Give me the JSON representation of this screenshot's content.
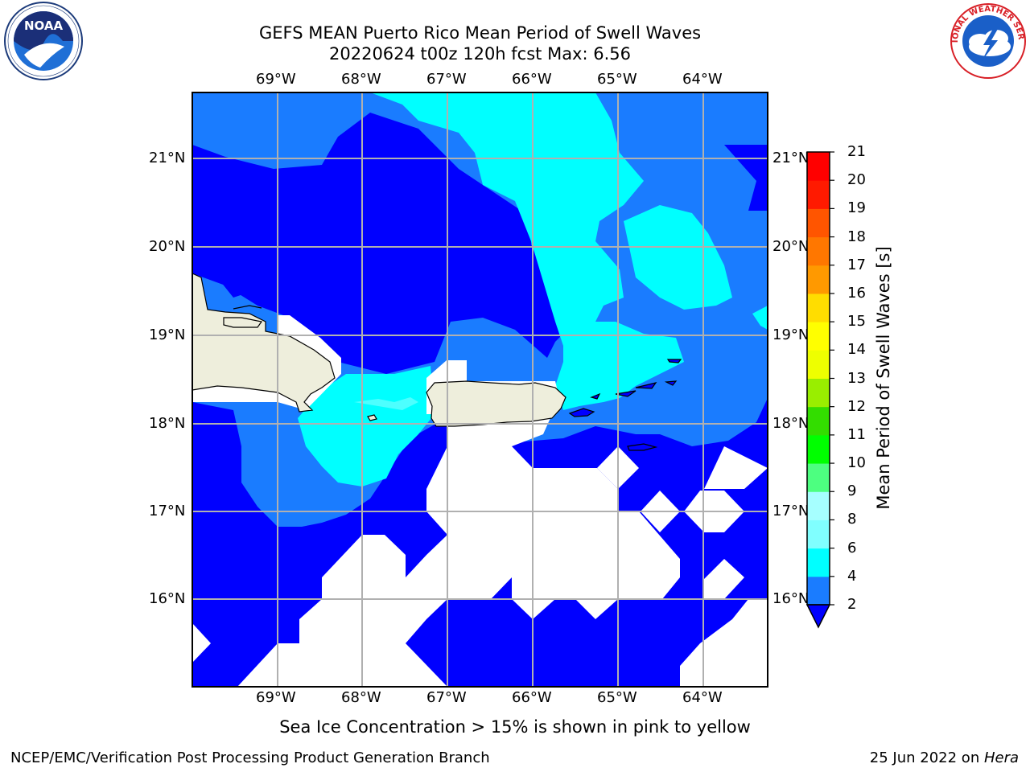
{
  "header": {
    "title_line1": "GEFS MEAN Puerto Rico Mean Period of Swell Waves",
    "title_line2": "20220624 t00z 120h fcst   Max: 6.56"
  },
  "logos": {
    "left": {
      "name": "NOAA",
      "ring_text": "NATIONAL OCEANIC AND ATMOSPHERIC ADMINISTRATION · U.S. DEPARTMENT OF COMMERCE"
    },
    "right": {
      "name": "NATIONAL WEATHER SERVICE"
    }
  },
  "map": {
    "lon_labels": [
      "69°W",
      "68°W",
      "67°W",
      "66°W",
      "65°W",
      "64°W"
    ],
    "lat_labels": [
      "21°N",
      "20°N",
      "19°N",
      "18°N",
      "17°N",
      "16°N"
    ],
    "fill_colors": {
      "deep_blue": "#0000ff",
      "blue": "#1a7cff",
      "cyan": "#00ffff",
      "light_cyan": "#4dffff",
      "land": "#eeeedc",
      "no_data": "#ffffff"
    }
  },
  "colorbar": {
    "label": "Mean Period of Swell Waves [s]",
    "ticks": [
      "2",
      "4",
      "6",
      "8",
      "9",
      "10",
      "11",
      "12",
      "13",
      "14",
      "15",
      "16",
      "17",
      "18",
      "19",
      "20",
      "21"
    ],
    "colors": [
      "#1a7cff",
      "#00ffff",
      "#4dffff",
      "#80ffff",
      "#a6ffff",
      "#4dff80",
      "#00ff4d",
      "#00ff00",
      "#33dd00",
      "#99ee00",
      "#ccff00",
      "#eeff00",
      "#ffff00",
      "#ffdd00",
      "#ffbb00",
      "#ff9900",
      "#ff7700",
      "#ff5500",
      "#ff3300",
      "#ff1a00",
      "#ff0000"
    ]
  },
  "caption": "Sea Ice Concentration > 15% is shown in pink to yellow",
  "footer": {
    "left": "NCEP/EMC/Verification Post Processing Product Generation Branch",
    "right_date": "25 Jun 2022 on ",
    "right_machine": "Hera"
  }
}
